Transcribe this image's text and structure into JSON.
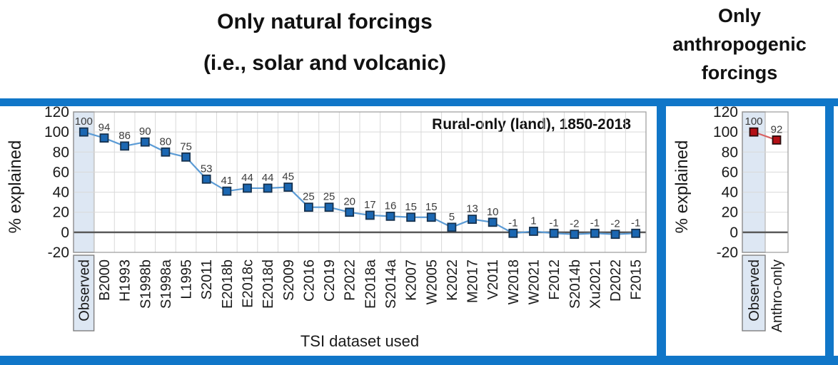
{
  "titles": {
    "left": [
      "Only natural forcings",
      "(i.e., solar and volcanic)"
    ],
    "right": [
      "Only",
      "anthropogenic",
      "forcings"
    ]
  },
  "colors": {
    "frame_blue": "#1076c8",
    "highlight_fill": "#dde7f3",
    "highlight_border": "#7f7f7f",
    "gridline": "#d9d9d9",
    "plot_border": "#9b9b9b",
    "zero_line": "#595959",
    "tick_text": "#1a1a1a",
    "label_text": "#3c3c3c",
    "natural_marker": "#1b67b2",
    "natural_marker_border": "#16324f",
    "natural_line": "#5b9bd5",
    "anthro_marker": "#b41016",
    "anthro_marker_border": "#2a0c0c",
    "anthro_line": "#d96161"
  },
  "chart_data": [
    {
      "type": "line",
      "panel_title": "Only natural forcings (i.e., solar and volcanic)",
      "annotation": "Rural-only (land), 1850-2018",
      "xlabel": "TSI dataset used",
      "ylabel": "% explained",
      "ylim": [
        -20,
        120
      ],
      "y_ticks": [
        120,
        100,
        80,
        60,
        40,
        20,
        0,
        -20
      ],
      "grid": true,
      "legend": "none",
      "highlight_category": "Observed",
      "categories": [
        "Observed",
        "B2000",
        "H1993",
        "S1998b",
        "S1998a",
        "L1995",
        "S2011",
        "E2018b",
        "E2018c",
        "E2018d",
        "S2009",
        "C2016",
        "C2019",
        "P2022",
        "E2018a",
        "S2014a",
        "K2007",
        "W2005",
        "K2022",
        "M2017",
        "V2011",
        "W2018",
        "W2021",
        "F2012",
        "S2014b",
        "Xu2021",
        "D2022",
        "F2015"
      ],
      "values": [
        100,
        94,
        86,
        90,
        80,
        75,
        53,
        41,
        44,
        44,
        45,
        25,
        25,
        20,
        17,
        16,
        15,
        15,
        5,
        13,
        10,
        -1,
        1,
        -1,
        -2,
        -1,
        -2,
        -1
      ]
    },
    {
      "type": "line",
      "panel_title": "Only anthropogenic forcings",
      "ylabel": "% explained",
      "ylim": [
        -20,
        120
      ],
      "y_ticks": [
        120,
        100,
        80,
        60,
        40,
        20,
        0,
        -20
      ],
      "grid": true,
      "legend": "none",
      "highlight_category": "Observed",
      "categories": [
        "Observed",
        "Anthro-only"
      ],
      "values": [
        100,
        92
      ]
    }
  ]
}
